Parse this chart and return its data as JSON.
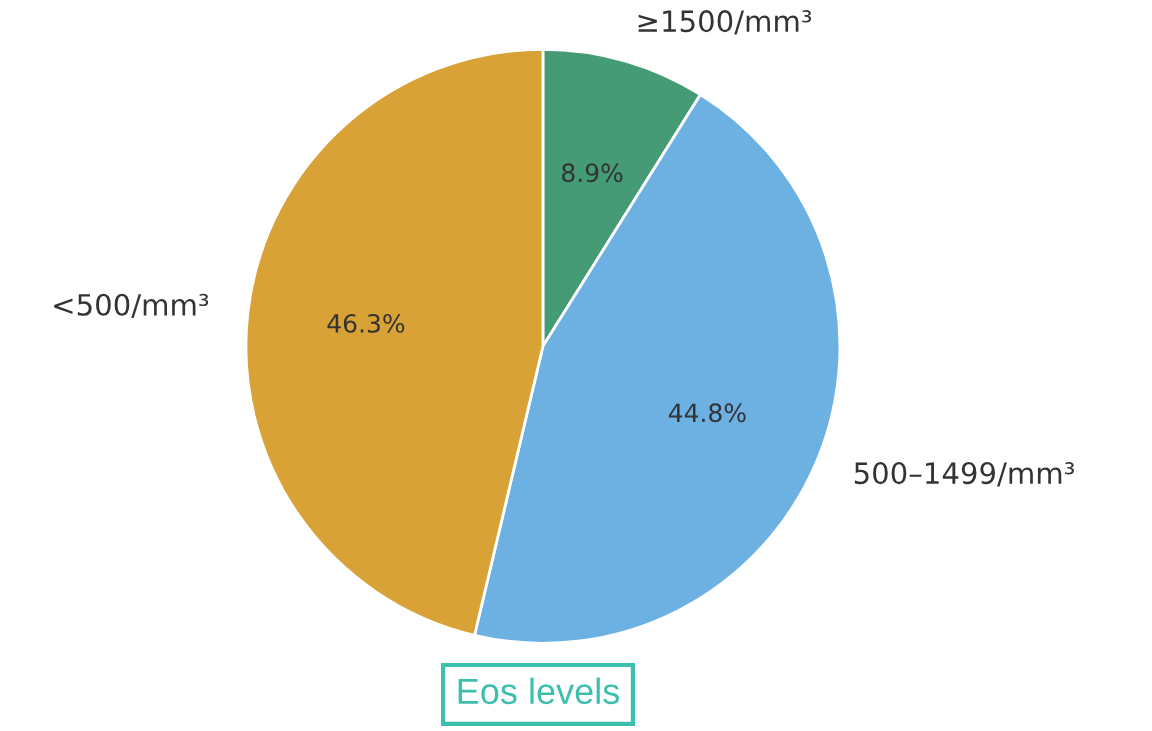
{
  "chart_data": {
    "type": "pie",
    "categories": [
      "≥1500/mm³",
      "500–1499/mm³",
      "<500/mm³"
    ],
    "values": [
      8.9,
      44.8,
      46.3
    ],
    "colors": [
      "#469b77",
      "#6db0e2",
      "#d9a236"
    ],
    "value_labels": [
      "8.9%",
      "44.8%",
      "46.3%"
    ],
    "annotations": [
      "Eos levels"
    ],
    "legend": false
  }
}
